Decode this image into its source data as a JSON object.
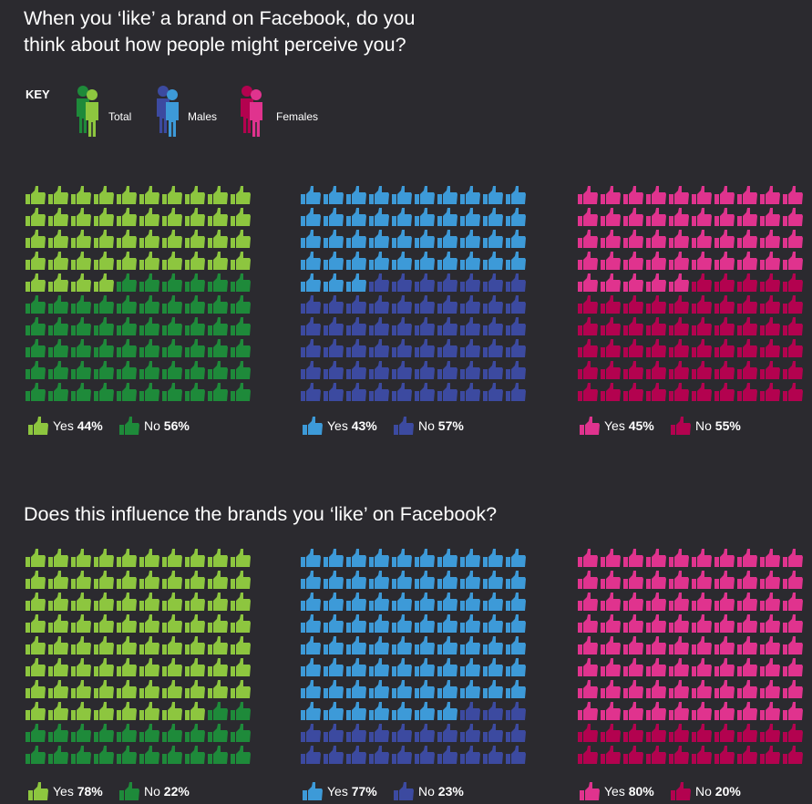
{
  "questions": {
    "q1": "When you ‘like’ a brand on Facebook, do you think about how people might perceive you?",
    "q2": "Does this influence the brands you ‘like’ on Facebook?"
  },
  "key": {
    "title": "KEY",
    "items": [
      {
        "label": "Total",
        "light": "#8dc63f",
        "dark": "#1e8a3a"
      },
      {
        "label": "Males",
        "light": "#3d9ad8",
        "dark": "#3c4aa0"
      },
      {
        "label": "Females",
        "light": "#e0338e",
        "dark": "#b3024f"
      }
    ]
  },
  "legend_labels": {
    "yes": "Yes",
    "no": "No"
  },
  "chart_data": [
    {
      "type": "pictogram",
      "question": "q1",
      "group": "Total",
      "icons_total": 100,
      "categories": [
        "Yes",
        "No"
      ],
      "values": [
        44,
        56
      ],
      "yes_text": "44%",
      "no_text": "56%",
      "colors": {
        "yes": "#8dc63f",
        "no": "#1e8a3a"
      }
    },
    {
      "type": "pictogram",
      "question": "q1",
      "group": "Males",
      "icons_total": 100,
      "categories": [
        "Yes",
        "No"
      ],
      "values": [
        43,
        57
      ],
      "yes_text": "43%",
      "no_text": "57%",
      "colors": {
        "yes": "#3d9ad8",
        "no": "#3c4aa0"
      }
    },
    {
      "type": "pictogram",
      "question": "q1",
      "group": "Females",
      "icons_total": 100,
      "categories": [
        "Yes",
        "No"
      ],
      "values": [
        45,
        55
      ],
      "yes_text": "45%",
      "no_text": "55%",
      "colors": {
        "yes": "#e0338e",
        "no": "#b3024f"
      }
    },
    {
      "type": "pictogram",
      "question": "q2",
      "group": "Total",
      "icons_total": 100,
      "categories": [
        "Yes",
        "No"
      ],
      "values": [
        78,
        22
      ],
      "yes_text": "78%",
      "no_text": "22%",
      "colors": {
        "yes": "#8dc63f",
        "no": "#1e8a3a"
      }
    },
    {
      "type": "pictogram",
      "question": "q2",
      "group": "Males",
      "icons_total": 100,
      "categories": [
        "Yes",
        "No"
      ],
      "values": [
        77,
        23
      ],
      "yes_text": "77%",
      "no_text": "23%",
      "colors": {
        "yes": "#3d9ad8",
        "no": "#3c4aa0"
      }
    },
    {
      "type": "pictogram",
      "question": "q2",
      "group": "Females",
      "icons_total": 100,
      "categories": [
        "Yes",
        "No"
      ],
      "values": [
        80,
        20
      ],
      "yes_text": "80%",
      "no_text": "20%",
      "colors": {
        "yes": "#e0338e",
        "no": "#b3024f"
      }
    }
  ]
}
